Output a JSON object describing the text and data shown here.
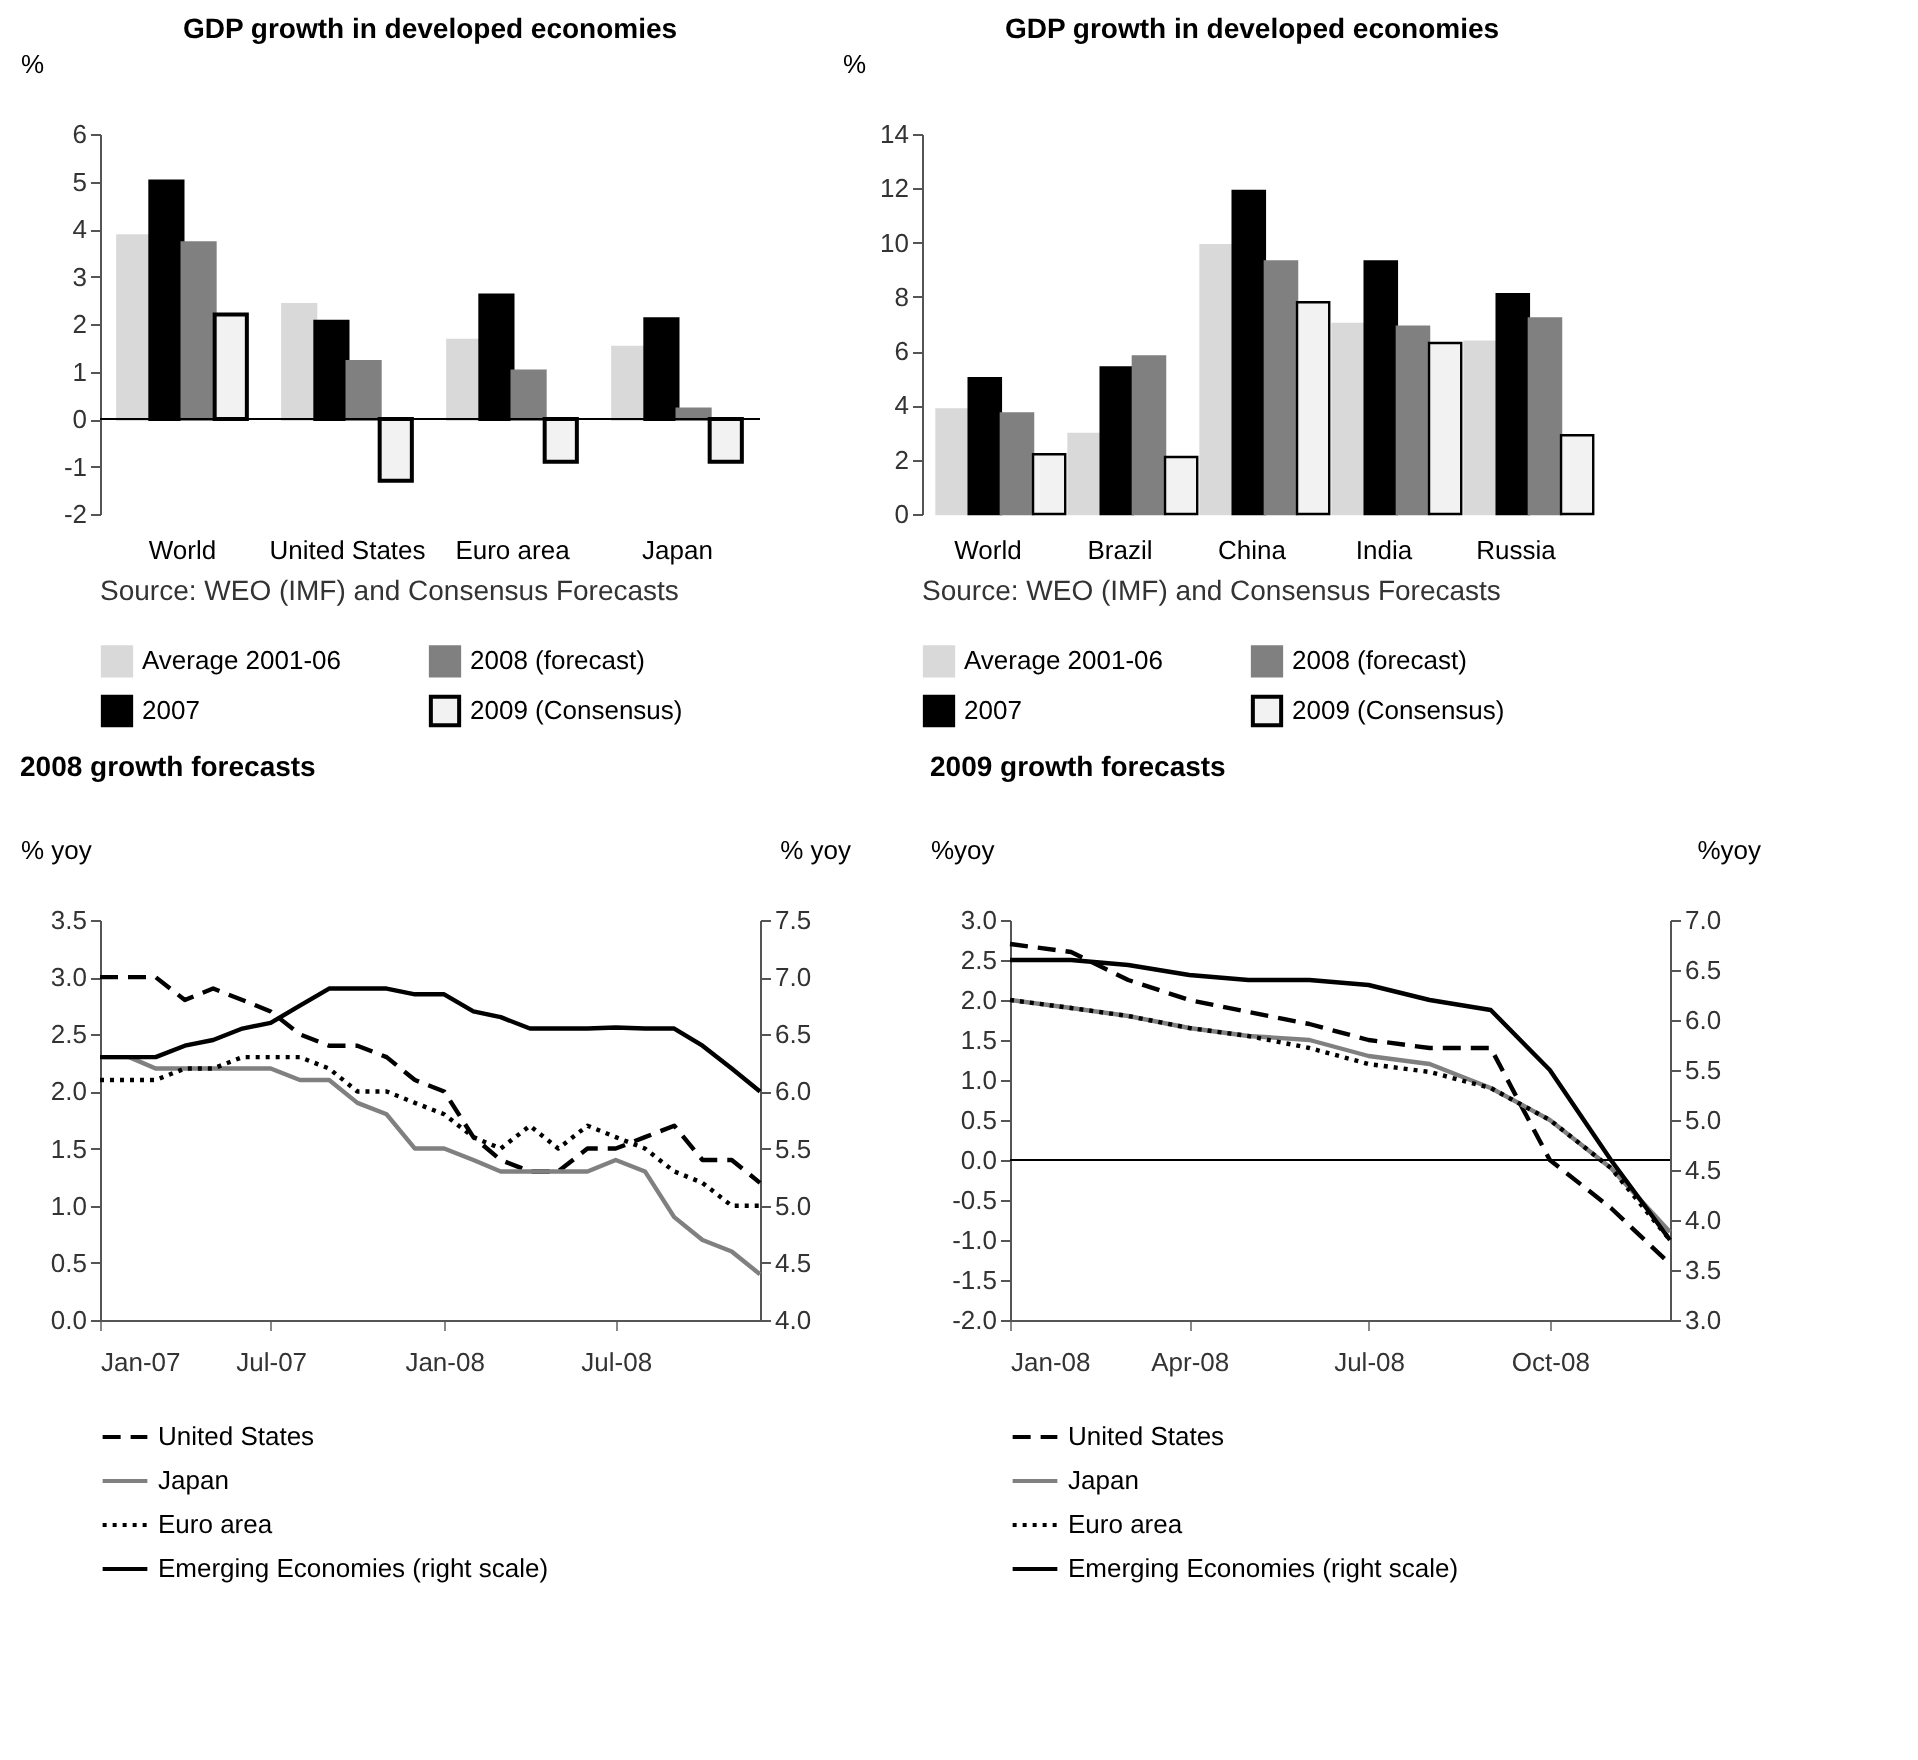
{
  "chart_data": [
    {
      "type": "bar",
      "title": "GDP growth in developed economies",
      "ylabel": "%",
      "categories": [
        "World",
        "United States",
        "Euro area",
        "Japan"
      ],
      "series": [
        {
          "name": "Average 2001-06",
          "color": "#d9d9d9",
          "values": [
            3.85,
            2.4,
            1.65,
            1.5
          ]
        },
        {
          "name": "2007",
          "color": "#000000",
          "values": [
            5.0,
            2.05,
            2.6,
            2.1
          ]
        },
        {
          "name": "2008 (forecast)",
          "color": "#808080",
          "values": [
            3.7,
            1.2,
            1.0,
            0.2
          ]
        },
        {
          "name": "2009 (Consensus)",
          "color": "#f2f2f2",
          "values": [
            2.2,
            -1.3,
            -0.9,
            -0.9
          ]
        }
      ],
      "ylim": [
        -2,
        6
      ],
      "yticks": [
        -2,
        -1,
        0,
        1,
        2,
        3,
        4,
        5,
        6
      ],
      "ref_lines": [
        {
          "axis": "y",
          "value": 0
        }
      ],
      "grid": false,
      "legend": "bottom",
      "annotations": [
        "Source: WEO (IMF) and Consensus Forecasts"
      ]
    },
    {
      "type": "bar",
      "title": "GDP growth in developed economies",
      "ylabel": "%",
      "categories": [
        "World",
        "Brazil",
        "China",
        "India",
        "Russia"
      ],
      "series": [
        {
          "name": "Average 2001-06",
          "color": "#d9d9d9",
          "values": [
            3.85,
            2.95,
            9.9,
            7.0,
            6.35
          ]
        },
        {
          "name": "2007",
          "color": "#000000",
          "values": [
            5.0,
            5.4,
            11.9,
            9.3,
            8.1
          ]
        },
        {
          "name": "2008 (forecast)",
          "color": "#808080",
          "values": [
            3.7,
            5.8,
            9.3,
            6.9,
            7.2
          ]
        },
        {
          "name": "2009 (Consensus)",
          "color": "#f2f2f2",
          "values": [
            2.2,
            2.1,
            7.8,
            6.3,
            2.9
          ]
        }
      ],
      "ylim": [
        0,
        14
      ],
      "yticks": [
        0,
        2,
        4,
        6,
        8,
        10,
        12,
        14
      ],
      "grid": false,
      "legend": "bottom",
      "annotations": [
        "Source: WEO (IMF) and Consensus Forecasts"
      ]
    },
    {
      "type": "line",
      "title": "2008 growth forecasts",
      "ylabel": "% yoy",
      "y2label": "% yoy",
      "x": [
        "2007-01",
        "2007-02",
        "2007-03",
        "2007-04",
        "2007-05",
        "2007-06",
        "2007-07",
        "2007-08",
        "2007-09",
        "2007-10",
        "2007-11",
        "2007-12",
        "2008-01",
        "2008-02",
        "2008-03",
        "2008-04",
        "2008-05",
        "2008-06",
        "2008-07",
        "2008-08",
        "2008-09",
        "2008-10",
        "2008-11",
        "2008-12"
      ],
      "series": [
        {
          "name": "United States",
          "color": "#000000",
          "line_style": "dashed",
          "values": [
            3.0,
            3.0,
            3.0,
            2.8,
            2.9,
            2.8,
            2.7,
            2.5,
            2.4,
            2.4,
            2.3,
            2.1,
            2.0,
            1.6,
            1.4,
            1.3,
            1.3,
            1.5,
            1.5,
            1.6,
            1.7,
            1.4,
            1.4,
            1.2
          ]
        },
        {
          "name": "Japan",
          "color": "#808080",
          "line_style": "solid",
          "values": [
            2.3,
            2.3,
            2.2,
            2.2,
            2.2,
            2.2,
            2.2,
            2.1,
            2.1,
            1.9,
            1.8,
            1.5,
            1.5,
            1.4,
            1.3,
            1.3,
            1.3,
            1.3,
            1.4,
            1.3,
            0.9,
            0.7,
            0.6,
            0.4
          ]
        },
        {
          "name": "Euro area",
          "color": "#000000",
          "line_style": "dotted",
          "values": [
            2.1,
            2.1,
            2.1,
            2.2,
            2.2,
            2.3,
            2.3,
            2.3,
            2.2,
            2.0,
            2.0,
            1.9,
            1.8,
            1.6,
            1.5,
            1.7,
            1.5,
            1.7,
            1.6,
            1.5,
            1.3,
            1.2,
            1.0,
            1.0
          ]
        },
        {
          "name": "Emerging Economies (right scale)",
          "color": "#000000",
          "line_style": "solid",
          "axis": "y2",
          "values": [
            6.3,
            6.3,
            6.3,
            6.4,
            6.45,
            6.55,
            6.6,
            6.75,
            6.9,
            6.9,
            6.9,
            6.85,
            6.85,
            6.7,
            6.65,
            6.55,
            6.55,
            6.55,
            6.56,
            6.55,
            6.55,
            6.4,
            6.2,
            6.0
          ]
        }
      ],
      "xlim": [
        "2007-01",
        "2008-12"
      ],
      "xticks": [
        {
          "value": "2007-01",
          "label": "Jan-07"
        },
        {
          "value": "2007-07",
          "label": "Jul-07"
        },
        {
          "value": "2008-01",
          "label": "Jan-08"
        },
        {
          "value": "2008-07",
          "label": "Jul-08"
        }
      ],
      "ylim": [
        0,
        3.5
      ],
      "yticks": [
        {
          "value": 0,
          "label": "0.0"
        },
        {
          "value": 0.5,
          "label": "0.5"
        },
        {
          "value": 1,
          "label": "1.0"
        },
        {
          "value": 1.5,
          "label": "1.5"
        },
        {
          "value": 2,
          "label": "2.0"
        },
        {
          "value": 2.5,
          "label": "2.5"
        },
        {
          "value": 3,
          "label": "3.0"
        },
        {
          "value": 3.5,
          "label": "3.5"
        }
      ],
      "y2lim": [
        4,
        7.5
      ],
      "y2ticks": [
        {
          "value": 4,
          "label": "4.0"
        },
        {
          "value": 4.5,
          "label": "4.5"
        },
        {
          "value": 5,
          "label": "5.0"
        },
        {
          "value": 5.5,
          "label": "5.5"
        },
        {
          "value": 6,
          "label": "6.0"
        },
        {
          "value": 6.5,
          "label": "6.5"
        },
        {
          "value": 7,
          "label": "7.0"
        },
        {
          "value": 7.5,
          "label": "7.5"
        }
      ],
      "grid": false,
      "legend": "bottom"
    },
    {
      "type": "line",
      "title": "2009 growth forecasts",
      "ylabel": "%yoy",
      "y2label": "%yoy",
      "x": [
        "2008-01",
        "2008-02",
        "2008-03",
        "2008-04",
        "2008-05",
        "2008-06",
        "2008-07",
        "2008-08",
        "2008-09",
        "2008-10",
        "2008-11",
        "2008-12"
      ],
      "series": [
        {
          "name": "United States",
          "color": "#000000",
          "line_style": "dashed",
          "values": [
            2.7,
            2.6,
            2.25,
            2.0,
            1.85,
            1.7,
            1.5,
            1.4,
            1.4,
            0.0,
            -0.6,
            -1.3
          ]
        },
        {
          "name": "Japan",
          "color": "#808080",
          "line_style": "solid",
          "values": [
            2.0,
            1.9,
            1.8,
            1.65,
            1.55,
            1.5,
            1.3,
            1.2,
            0.9,
            0.5,
            -0.1,
            -0.9
          ]
        },
        {
          "name": "Euro area",
          "color": "#000000",
          "line_style": "dotted",
          "values": [
            2.0,
            1.9,
            1.8,
            1.65,
            1.55,
            1.4,
            1.2,
            1.1,
            0.9,
            0.5,
            -0.1,
            -1.0
          ]
        },
        {
          "name": "Emerging Economies (right scale)",
          "color": "#000000",
          "line_style": "solid",
          "axis": "y2",
          "values": [
            6.6,
            6.6,
            6.55,
            6.45,
            6.4,
            6.4,
            6.35,
            6.2,
            6.1,
            5.5,
            4.6,
            3.8
          ]
        }
      ],
      "xlim": [
        "2008-01",
        "2008-12"
      ],
      "xticks": [
        {
          "value": "2008-01",
          "label": "Jan-08"
        },
        {
          "value": "2008-04",
          "label": "Apr-08"
        },
        {
          "value": "2008-07",
          "label": "Jul-08"
        },
        {
          "value": "2008-10",
          "label": "Oct-08"
        }
      ],
      "ylim": [
        -2,
        3
      ],
      "yticks": [
        {
          "value": -2,
          "label": "-2.0"
        },
        {
          "value": -1.5,
          "label": "-1.5"
        },
        {
          "value": -1,
          "label": "-1.0"
        },
        {
          "value": -0.5,
          "label": "-0.5"
        },
        {
          "value": 0,
          "label": "0.0"
        },
        {
          "value": 0.5,
          "label": "0.5"
        },
        {
          "value": 1,
          "label": "1.0"
        },
        {
          "value": 1.5,
          "label": "1.5"
        },
        {
          "value": 2,
          "label": "2.0"
        },
        {
          "value": 2.5,
          "label": "2.5"
        },
        {
          "value": 3,
          "label": "3.0"
        }
      ],
      "y2lim": [
        3,
        7
      ],
      "y2ticks": [
        {
          "value": 3,
          "label": "3.0"
        },
        {
          "value": 3.5,
          "label": "3.5"
        },
        {
          "value": 4,
          "label": "4.0"
        },
        {
          "value": 4.5,
          "label": "4.5"
        },
        {
          "value": 5,
          "label": "5.0"
        },
        {
          "value": 5.5,
          "label": "5.5"
        },
        {
          "value": 6,
          "label": "6.0"
        },
        {
          "value": 6.5,
          "label": "6.5"
        },
        {
          "value": 7,
          "label": "7.0"
        }
      ],
      "ref_lines": [
        {
          "axis": "y",
          "value": 0
        }
      ],
      "grid": false,
      "legend": "bottom"
    }
  ]
}
